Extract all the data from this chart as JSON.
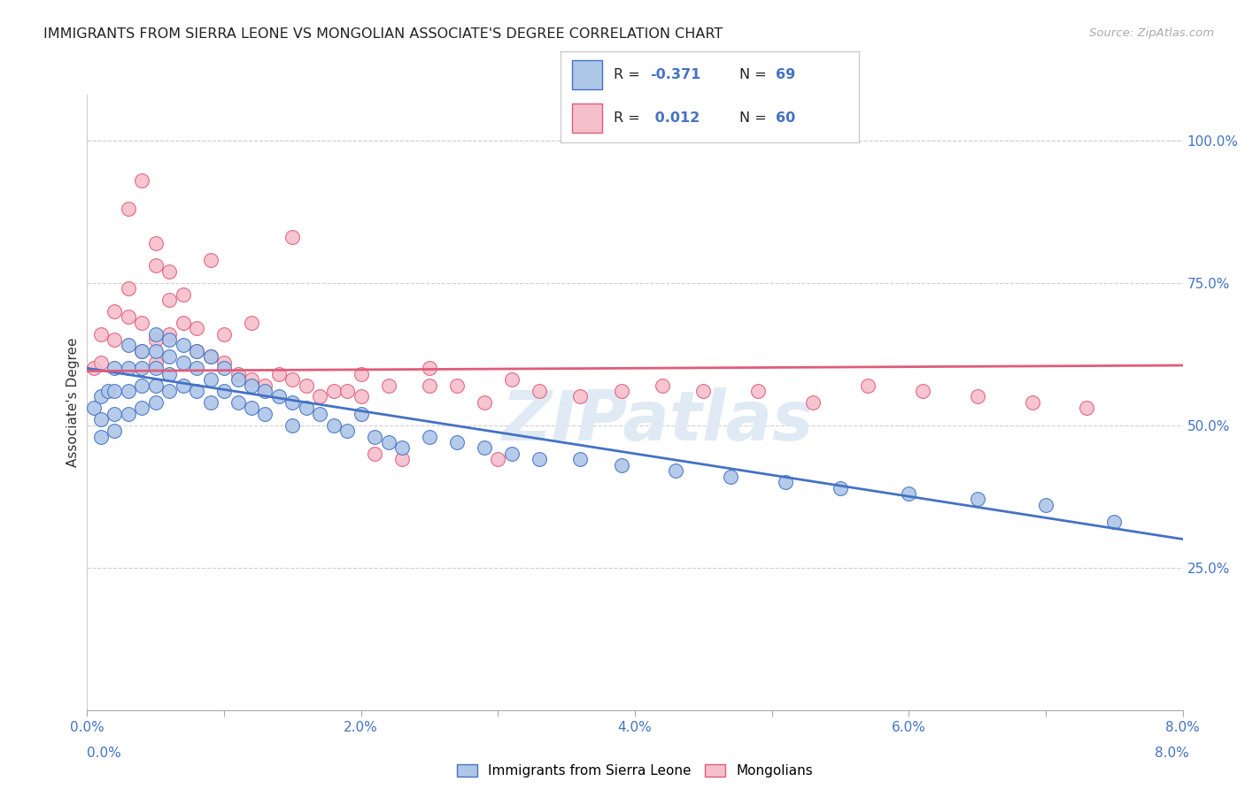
{
  "title": "IMMIGRANTS FROM SIERRA LEONE VS MONGOLIAN ASSOCIATE'S DEGREE CORRELATION CHART",
  "source": "Source: ZipAtlas.com",
  "ylabel": "Associate's Degree",
  "ylabel_right_ticks": [
    "25.0%",
    "50.0%",
    "75.0%",
    "100.0%"
  ],
  "ylabel_right_vals": [
    0.25,
    0.5,
    0.75,
    1.0
  ],
  "legend_blue_label": "Immigrants from Sierra Leone",
  "legend_pink_label": "Mongolians",
  "r_blue": "-0.371",
  "n_blue": "69",
  "r_pink": "0.012",
  "n_pink": "60",
  "blue_fill": "#aec6e8",
  "pink_fill": "#f5bfcc",
  "line_blue": "#4472c4",
  "line_pink": "#e05c7a",
  "background_color": "#ffffff",
  "grid_color": "#d0d0d0",
  "x_min": 0.0,
  "x_max": 0.08,
  "y_min": 0.0,
  "y_max": 1.08,
  "blue_x": [
    0.0005,
    0.001,
    0.001,
    0.001,
    0.0015,
    0.002,
    0.002,
    0.002,
    0.002,
    0.003,
    0.003,
    0.003,
    0.003,
    0.004,
    0.004,
    0.004,
    0.004,
    0.005,
    0.005,
    0.005,
    0.005,
    0.005,
    0.006,
    0.006,
    0.006,
    0.006,
    0.007,
    0.007,
    0.007,
    0.008,
    0.008,
    0.008,
    0.009,
    0.009,
    0.009,
    0.01,
    0.01,
    0.011,
    0.011,
    0.012,
    0.012,
    0.013,
    0.013,
    0.014,
    0.015,
    0.015,
    0.016,
    0.017,
    0.018,
    0.019,
    0.02,
    0.021,
    0.022,
    0.023,
    0.025,
    0.027,
    0.029,
    0.031,
    0.033,
    0.036,
    0.039,
    0.043,
    0.047,
    0.051,
    0.055,
    0.06,
    0.065,
    0.07,
    0.075
  ],
  "blue_y": [
    0.53,
    0.55,
    0.51,
    0.48,
    0.56,
    0.6,
    0.56,
    0.52,
    0.49,
    0.64,
    0.6,
    0.56,
    0.52,
    0.63,
    0.6,
    0.57,
    0.53,
    0.66,
    0.63,
    0.6,
    0.57,
    0.54,
    0.65,
    0.62,
    0.59,
    0.56,
    0.64,
    0.61,
    0.57,
    0.63,
    0.6,
    0.56,
    0.62,
    0.58,
    0.54,
    0.6,
    0.56,
    0.58,
    0.54,
    0.57,
    0.53,
    0.56,
    0.52,
    0.55,
    0.54,
    0.5,
    0.53,
    0.52,
    0.5,
    0.49,
    0.52,
    0.48,
    0.47,
    0.46,
    0.48,
    0.47,
    0.46,
    0.45,
    0.44,
    0.44,
    0.43,
    0.42,
    0.41,
    0.4,
    0.39,
    0.38,
    0.37,
    0.36,
    0.33
  ],
  "pink_x": [
    0.0005,
    0.001,
    0.001,
    0.002,
    0.002,
    0.003,
    0.003,
    0.004,
    0.004,
    0.005,
    0.005,
    0.005,
    0.006,
    0.006,
    0.007,
    0.007,
    0.008,
    0.008,
    0.009,
    0.01,
    0.01,
    0.011,
    0.012,
    0.013,
    0.014,
    0.015,
    0.016,
    0.017,
    0.018,
    0.019,
    0.02,
    0.021,
    0.022,
    0.023,
    0.025,
    0.027,
    0.029,
    0.031,
    0.033,
    0.036,
    0.039,
    0.042,
    0.045,
    0.049,
    0.053,
    0.057,
    0.061,
    0.065,
    0.069,
    0.073,
    0.003,
    0.004,
    0.005,
    0.006,
    0.009,
    0.012,
    0.015,
    0.02,
    0.025,
    0.03
  ],
  "pink_y": [
    0.6,
    0.66,
    0.61,
    0.7,
    0.65,
    0.74,
    0.69,
    0.68,
    0.63,
    0.65,
    0.61,
    0.78,
    0.72,
    0.66,
    0.73,
    0.68,
    0.67,
    0.63,
    0.62,
    0.66,
    0.61,
    0.59,
    0.58,
    0.57,
    0.59,
    0.58,
    0.57,
    0.55,
    0.56,
    0.56,
    0.55,
    0.45,
    0.57,
    0.44,
    0.6,
    0.57,
    0.54,
    0.58,
    0.56,
    0.55,
    0.56,
    0.57,
    0.56,
    0.56,
    0.54,
    0.57,
    0.56,
    0.55,
    0.54,
    0.53,
    0.88,
    0.93,
    0.82,
    0.77,
    0.79,
    0.68,
    0.83,
    0.59,
    0.57,
    0.44
  ],
  "blue_trend": [
    0.6,
    0.3
  ],
  "pink_trend": [
    0.595,
    0.605
  ],
  "xtick_vals": [
    0.0,
    0.01,
    0.02,
    0.03,
    0.04,
    0.05,
    0.06,
    0.07,
    0.08
  ],
  "xtick_labels": [
    "0.0%",
    "",
    "2.0%",
    "",
    "4.0%",
    "",
    "6.0%",
    "",
    "8.0%"
  ],
  "watermark": "ZIPatlas"
}
